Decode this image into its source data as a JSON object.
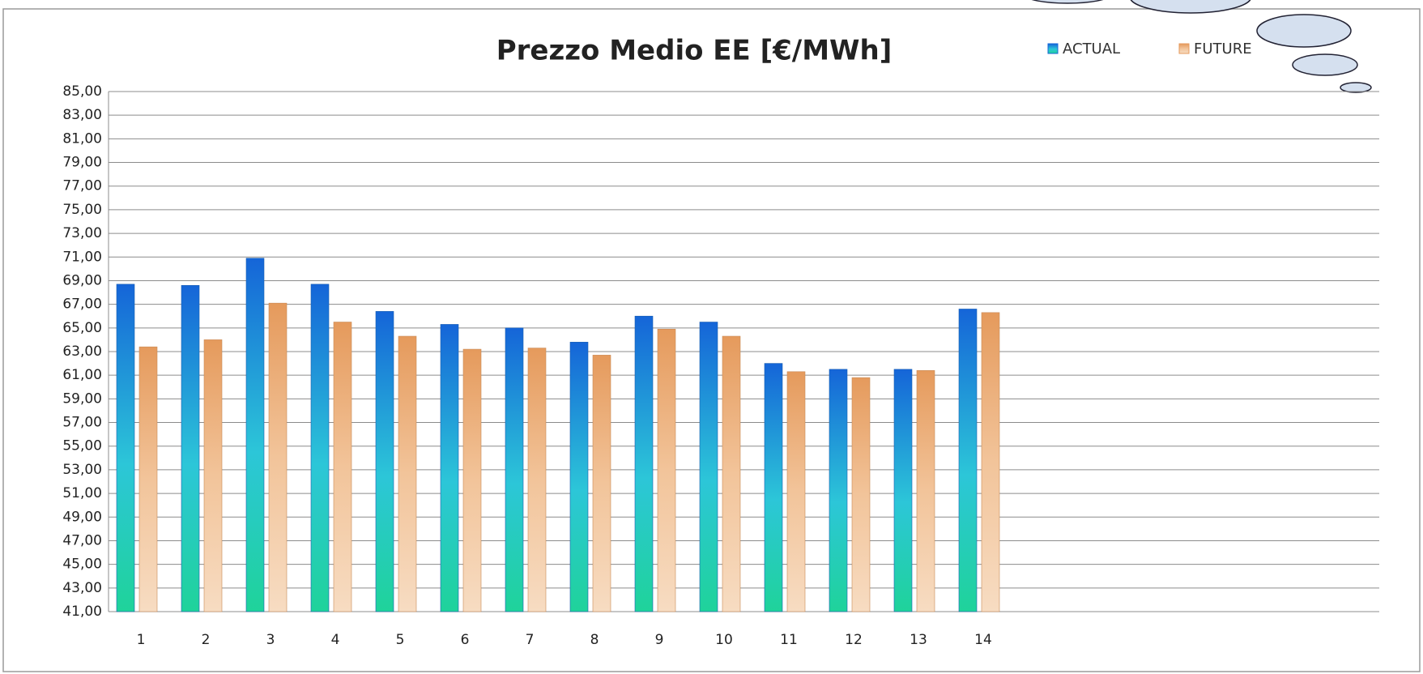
{
  "chart_data": {
    "type": "bar",
    "title": "Prezzo Medio EE [€/MWh]",
    "categories": [
      "1",
      "2",
      "3",
      "4",
      "5",
      "6",
      "7",
      "8",
      "9",
      "10",
      "11",
      "12",
      "13",
      "14"
    ],
    "series": [
      {
        "name": "ACTUAL",
        "color": "#1565d8",
        "values": [
          68.7,
          68.6,
          70.9,
          68.7,
          66.4,
          65.3,
          65.0,
          63.8,
          66.0,
          65.5,
          62.0,
          61.5,
          61.5,
          66.6
        ]
      },
      {
        "name": "FUTURE",
        "color": "#e59a5c",
        "values": [
          63.4,
          64.0,
          67.1,
          65.5,
          64.3,
          63.2,
          63.3,
          62.7,
          64.9,
          64.3,
          61.3,
          60.8,
          61.4,
          66.3
        ]
      }
    ],
    "ylim": [
      41,
      85
    ],
    "yticks": [
      {
        "value": 41,
        "label": "41,00"
      },
      {
        "value": 43,
        "label": "43,00"
      },
      {
        "value": 45,
        "label": "45,00"
      },
      {
        "value": 47,
        "label": "47,00"
      },
      {
        "value": 49,
        "label": "49,00"
      },
      {
        "value": 51,
        "label": "51,00"
      },
      {
        "value": 53,
        "label": "53,00"
      },
      {
        "value": 55,
        "label": "55,00"
      },
      {
        "value": 57,
        "label": "57,00"
      },
      {
        "value": 59,
        "label": "59,00"
      },
      {
        "value": 61,
        "label": "61,00"
      },
      {
        "value": 63,
        "label": "63,00"
      },
      {
        "value": 65,
        "label": "65,00"
      },
      {
        "value": 67,
        "label": "67,00"
      },
      {
        "value": 69,
        "label": "69,00"
      },
      {
        "value": 71,
        "label": "71,00"
      },
      {
        "value": 73,
        "label": "73,00"
      },
      {
        "value": 75,
        "label": "75,00"
      },
      {
        "value": 77,
        "label": "77,00"
      },
      {
        "value": 79,
        "label": "79,00"
      },
      {
        "value": 81,
        "label": "81,00"
      },
      {
        "value": 83,
        "label": "83,00"
      },
      {
        "value": 85,
        "label": "85,00"
      }
    ],
    "grid": true
  }
}
